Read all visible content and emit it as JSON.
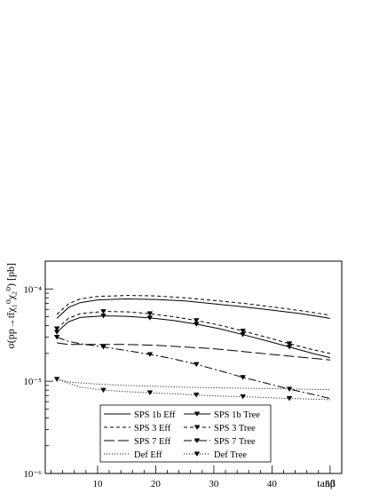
{
  "chart_data": {
    "type": "line",
    "xlabel": "tanβ",
    "ylabel": "σ(pp→tt̄χ₁⁰χ₂⁰) [pb]",
    "xlim": [
      1,
      52
    ],
    "ylim": [
      1e-06,
      0.0002
    ],
    "yscale": "log",
    "xticks": [
      "10",
      "20",
      "30",
      "40",
      "50"
    ],
    "yticks": [
      "10⁻⁶",
      "10⁻⁵",
      "10⁻⁴"
    ],
    "legend_position": "bottom-center",
    "series": [
      {
        "name": "SPS 1b Eff",
        "style": "solid",
        "x": [
          3,
          5,
          7,
          10,
          15,
          20,
          25,
          30,
          35,
          40,
          45,
          50
        ],
        "y": [
          4.8e-05,
          6.3e-05,
          7.1e-05,
          7.6e-05,
          7.8e-05,
          7.7e-05,
          7.4e-05,
          6.9e-05,
          6.4e-05,
          5.9e-05,
          5.4e-05,
          4.8e-05
        ]
      },
      {
        "name": "SPS 3 Eff",
        "style": "dashed",
        "x": [
          3,
          5,
          7,
          10,
          15,
          20,
          25,
          30,
          35,
          40,
          45,
          50
        ],
        "y": [
          5.3e-05,
          6.9e-05,
          7.8e-05,
          8.3e-05,
          8.5e-05,
          8.4e-05,
          8e-05,
          7.5e-05,
          7e-05,
          6.4e-05,
          5.8e-05,
          5.2e-05
        ]
      },
      {
        "name": "SPS 7 Eff",
        "style": "long-dash",
        "x": [
          3,
          5,
          7,
          10,
          15,
          20,
          25,
          30,
          35,
          40,
          45,
          50
        ],
        "y": [
          2.6e-05,
          2.5e-05,
          2.5e-05,
          2.5e-05,
          2.5e-05,
          2.45e-05,
          2.35e-05,
          2.25e-05,
          2.1e-05,
          1.95e-05,
          1.82e-05,
          1.7e-05
        ]
      },
      {
        "name": "Def Eff",
        "style": "dotted",
        "x": [
          3,
          5,
          10,
          15,
          20,
          25,
          30,
          35,
          40,
          45,
          50
        ],
        "y": [
          1.05e-05,
          9.8e-06,
          9.3e-06,
          9e-06,
          8.8e-06,
          8.6e-06,
          8.5e-06,
          8.4e-06,
          8.3e-06,
          8.2e-06,
          8.1e-06
        ]
      },
      {
        "name": "SPS 1b Tree",
        "style": "solid",
        "marker": "triangle-down",
        "x": [
          3,
          5,
          7,
          11,
          15,
          19,
          23,
          27,
          31,
          35,
          39,
          43,
          47,
          50
        ],
        "y": [
          3.4e-05,
          4.4e-05,
          4.9e-05,
          5.1e-05,
          5.05e-05,
          4.85e-05,
          4.55e-05,
          4.15e-05,
          3.7e-05,
          3.2e-05,
          2.75e-05,
          2.35e-05,
          2e-05,
          1.8e-05
        ],
        "markers_x": [
          3,
          11,
          19,
          27,
          35,
          43
        ],
        "markers_y": [
          3.4e-05,
          5.1e-05,
          4.85e-05,
          4.15e-05,
          3.2e-05,
          2.35e-05
        ]
      },
      {
        "name": "SPS 3 Tree",
        "style": "dashed",
        "marker": "triangle-down",
        "x": [
          3,
          5,
          7,
          11,
          15,
          19,
          23,
          27,
          31,
          35,
          39,
          43,
          47,
          50
        ],
        "y": [
          3.7e-05,
          4.8e-05,
          5.4e-05,
          5.7e-05,
          5.65e-05,
          5.4e-05,
          5e-05,
          4.55e-05,
          4.05e-05,
          3.5e-05,
          3e-05,
          2.55e-05,
          2.2e-05,
          2e-05
        ],
        "markers_x": [
          3,
          11,
          19,
          27,
          35,
          43
        ],
        "markers_y": [
          3.7e-05,
          5.7e-05,
          5.4e-05,
          4.55e-05,
          3.5e-05,
          2.55e-05
        ]
      },
      {
        "name": "SPS 7 Tree",
        "style": "long-dash-dot",
        "marker": "triangle-down",
        "x": [
          3,
          5,
          7,
          11,
          15,
          19,
          23,
          27,
          31,
          35,
          39,
          43,
          47,
          50
        ],
        "y": [
          3e-05,
          2.7e-05,
          2.55e-05,
          2.35e-05,
          2.15e-05,
          1.95e-05,
          1.75e-05,
          1.52e-05,
          1.3e-05,
          1.1e-05,
          9.5e-06,
          8.2e-06,
          7.2e-06,
          6.5e-06
        ],
        "markers_x": [
          3,
          11,
          19,
          27,
          35,
          43
        ],
        "markers_y": [
          3e-05,
          2.35e-05,
          1.95e-05,
          1.52e-05,
          1.1e-05,
          8.2e-06
        ]
      },
      {
        "name": "Def Tree",
        "style": "dotted",
        "marker": "triangle-down",
        "x": [
          3,
          7,
          11,
          15,
          19,
          23,
          27,
          31,
          35,
          39,
          43,
          47,
          50
        ],
        "y": [
          1.05e-05,
          8.6e-06,
          8e-06,
          7.7e-06,
          7.5e-06,
          7.3e-06,
          7.1e-06,
          6.9e-06,
          6.8e-06,
          6.65e-06,
          6.5e-06,
          6.4e-06,
          6.3e-06
        ],
        "markers_x": [
          3,
          11,
          19,
          27,
          35,
          43
        ],
        "markers_y": [
          1.05e-05,
          8e-06,
          7.5e-06,
          7.1e-06,
          6.8e-06,
          6.5e-06
        ]
      }
    ]
  }
}
